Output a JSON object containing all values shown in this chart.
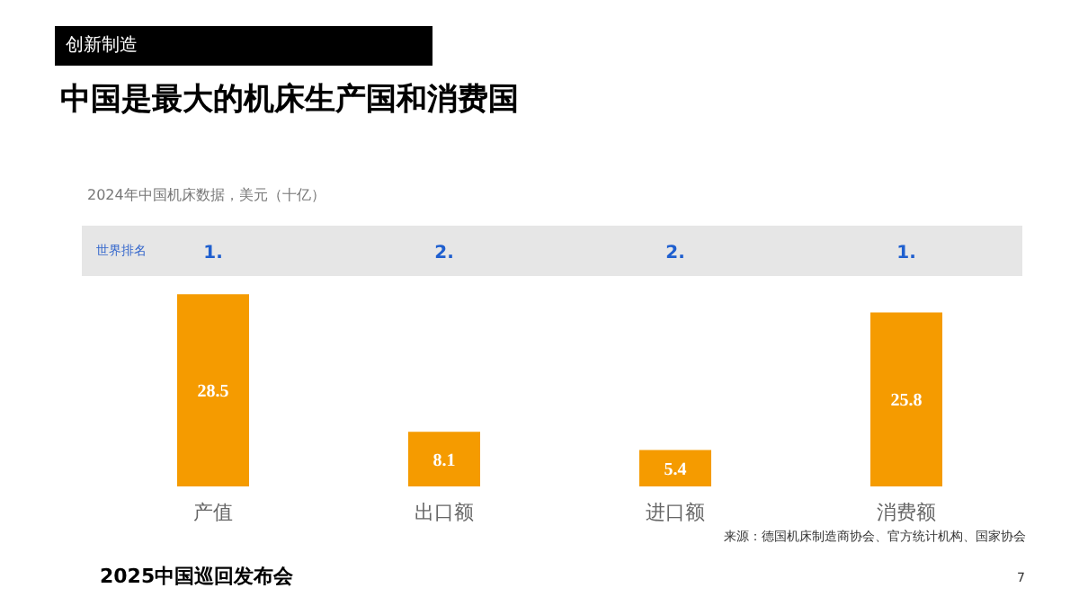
{
  "chart_data": {
    "type": "bar",
    "title": "中国是最大的机床生产国和消费国",
    "subtitle": "2024年中国机床数据，美元（十亿）",
    "categories": [
      "产值",
      "出口额",
      "进口额",
      "消费额"
    ],
    "values": [
      28.5,
      8.1,
      5.4,
      25.8
    ],
    "color": "#f59b00",
    "data_labels": true,
    "annotations": [
      "创新制造",
      "世界排名",
      "1.",
      "2.",
      "2.",
      "1.",
      "来源：德国机床制造商协会、官方统计机构、国家协会",
      "2025中国巡回发布会",
      "7"
    ]
  }
}
